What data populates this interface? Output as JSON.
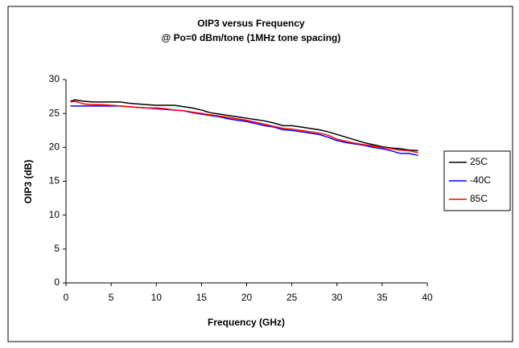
{
  "chart_data": {
    "type": "line",
    "title": "OIP3 versus Frequency",
    "subtitle": "@ Po=0 dBm/tone (1MHz tone spacing)",
    "x_label": "Frequency (GHz)",
    "y_label": "OIP3 (dB)",
    "x": [
      0.5,
      1,
      2,
      3,
      4,
      5,
      6,
      7,
      8,
      9,
      10,
      11,
      12,
      13,
      14,
      15,
      16,
      17,
      18,
      19,
      20,
      21,
      22,
      23,
      24,
      25,
      26,
      27,
      28,
      29,
      30,
      31,
      32,
      33,
      34,
      35,
      36,
      37,
      38,
      39
    ],
    "series": [
      {
        "name": "25C",
        "color": "#000000",
        "values": [
          26.8,
          27,
          26.8,
          26.7,
          26.7,
          26.7,
          26.7,
          26.5,
          26.4,
          26.3,
          26.2,
          26.2,
          26.2,
          26,
          25.8,
          25.5,
          25.1,
          24.9,
          24.7,
          24.5,
          24.3,
          24.1,
          23.9,
          23.6,
          23.2,
          23.2,
          23,
          22.8,
          22.6,
          22.3,
          21.9,
          21.5,
          21.1,
          20.7,
          20.4,
          20.1,
          19.9,
          19.8,
          19.6,
          19.5
        ]
      },
      {
        "name": "-40C",
        "color": "#0000ff",
        "values": [
          26.1,
          26.1,
          26.1,
          26.1,
          26.1,
          26.1,
          26.1,
          26,
          25.9,
          25.8,
          25.7,
          25.6,
          25.5,
          25.4,
          25.1,
          24.9,
          24.7,
          24.5,
          24.2,
          24.0,
          23.8,
          23.5,
          23.2,
          23.0,
          22.6,
          22.5,
          22.3,
          22.1,
          21.9,
          21.5,
          21.0,
          20.7,
          20.5,
          20.3,
          20.0,
          19.8,
          19.5,
          19.1,
          19.1,
          18.8
        ]
      },
      {
        "name": "85C",
        "color": "#ff0000",
        "values": [
          26.7,
          26.8,
          26.4,
          26.3,
          26.3,
          26.2,
          26.1,
          26,
          25.9,
          25.8,
          25.8,
          25.7,
          25.5,
          25.4,
          25.2,
          25,
          24.8,
          24.6,
          24.4,
          24.2,
          24,
          23.7,
          23.4,
          23.1,
          22.8,
          22.7,
          22.5,
          22.3,
          22.1,
          21.8,
          21.2,
          20.9,
          20.6,
          20.4,
          20.2,
          20,
          19.8,
          19.6,
          19.5,
          19.2
        ]
      }
    ],
    "xlim": [
      0,
      40
    ],
    "xticks": [
      0,
      5,
      10,
      15,
      20,
      25,
      30,
      35,
      40
    ],
    "ylim": [
      0,
      30
    ],
    "yticks": [
      0,
      5,
      10,
      15,
      20,
      25,
      30
    ],
    "grid": false,
    "legend": "right"
  }
}
